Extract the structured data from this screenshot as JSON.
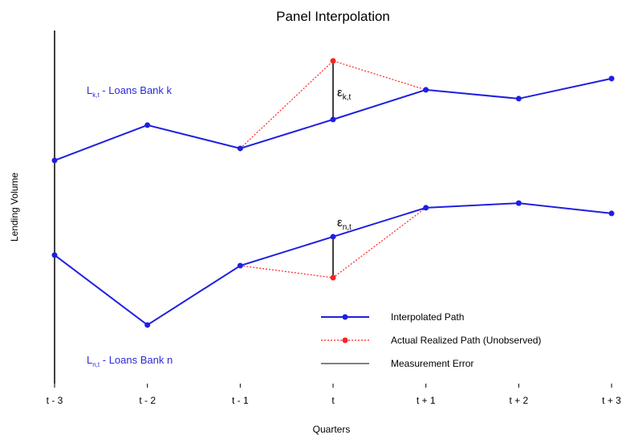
{
  "chart_data": {
    "type": "line",
    "title": "Panel Interpolation",
    "x_label": "Quarters",
    "y_label": "Lending Volume",
    "categories": [
      "t - 3",
      "t - 2",
      "t - 1",
      "t",
      "t + 1",
      "t + 2",
      "t + 3"
    ],
    "ylim": [
      0,
      100
    ],
    "series": [
      {
        "name": "Interpolated Path",
        "color": "#1f1fe0",
        "style": "solid",
        "values": [
          63.2,
          73.2,
          66.6,
          74.8,
          83.2,
          80.7,
          86.4
        ]
      },
      {
        "name": "Interpolated Path",
        "color": "#1f1fe0",
        "style": "solid",
        "values": [
          36.4,
          16.6,
          33.4,
          41.6,
          49.8,
          51.1,
          48.2
        ]
      },
      {
        "name": "Actual Realized Path (Unobserved)",
        "color": "#ff2020",
        "style": "dotted",
        "values": [
          null,
          null,
          66.6,
          91.4,
          83.2,
          null,
          null
        ]
      },
      {
        "name": "Actual Realized Path (Unobserved)",
        "color": "#ff2020",
        "style": "dotted",
        "values": [
          null,
          null,
          33.4,
          30.0,
          49.8,
          null,
          null
        ]
      }
    ],
    "error_legend": {
      "name": "Measurement Error",
      "color": "#000000"
    },
    "annotations": [
      {
        "main": "L",
        "sub": "k,t",
        "rest": " - Loans Bank k"
      },
      {
        "main": "L",
        "sub": "n,t",
        "rest": " - Loans Bank n"
      },
      {
        "main": "ε",
        "sub": "k,t"
      },
      {
        "main": "ε",
        "sub": "n,t"
      }
    ]
  }
}
